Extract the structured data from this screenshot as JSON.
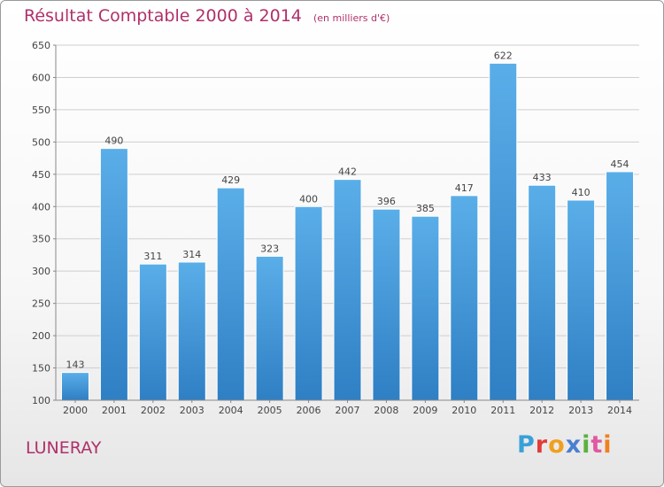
{
  "header": {
    "title": "Résultat Comptable 2000 à 2014",
    "unit": "(en milliers d'€)"
  },
  "footer": {
    "commune": "LUNERAY",
    "logo_letters": [
      "P",
      "r",
      "o",
      "x",
      "i",
      "t",
      "i"
    ],
    "logo_colors": [
      "#3aa0d8",
      "#e23b3b",
      "#f0a020",
      "#4a7fd0",
      "#5cb040",
      "#e05aa0",
      "#f08020"
    ]
  },
  "chart_data": {
    "type": "bar",
    "categories": [
      "2000",
      "2001",
      "2002",
      "2003",
      "2004",
      "2005",
      "2006",
      "2007",
      "2008",
      "2009",
      "2010",
      "2011",
      "2012",
      "2013",
      "2014"
    ],
    "values": [
      143,
      490,
      311,
      314,
      429,
      323,
      400,
      442,
      396,
      385,
      417,
      622,
      433,
      410,
      454
    ],
    "ylim": [
      100,
      650
    ],
    "yticks": [
      100,
      150,
      200,
      250,
      300,
      350,
      400,
      450,
      500,
      550,
      600,
      650
    ],
    "grid": true,
    "bar_color": "#4a9ee0",
    "grid_color": "#cfcfcf"
  }
}
